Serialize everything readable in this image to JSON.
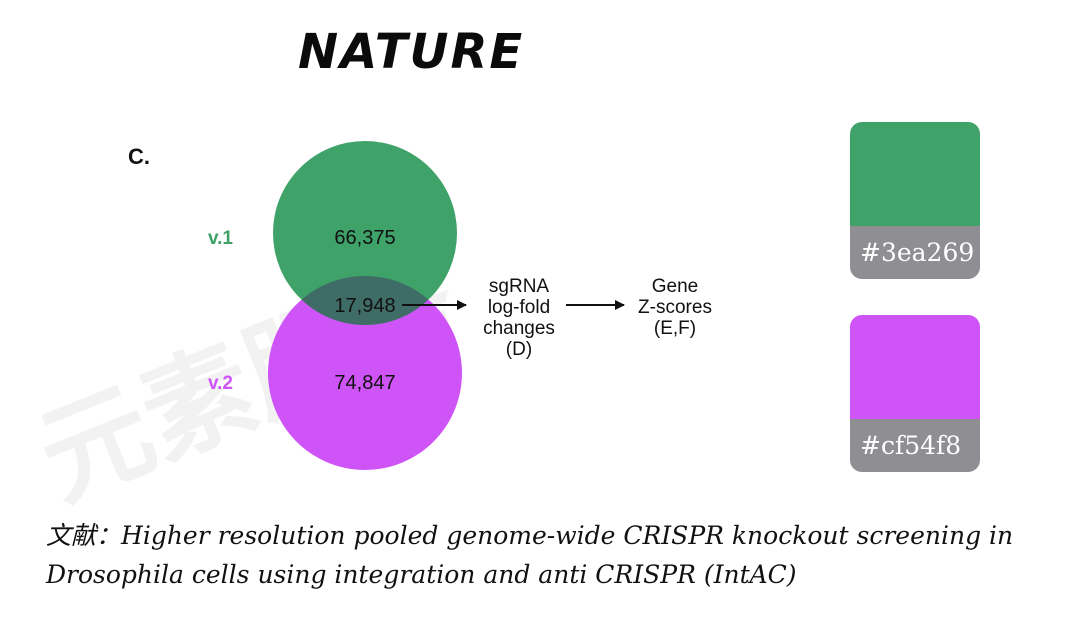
{
  "brand": "NATURE",
  "figure": {
    "panel_label": "C.",
    "venn": {
      "v1": {
        "label": "v.1",
        "count": "66,375",
        "color": "#3ea269"
      },
      "v2": {
        "label": "v.2",
        "count": "74,847",
        "color": "#cf54f8"
      },
      "overlap": {
        "count": "17,948",
        "color": "#3f6c67"
      }
    },
    "flow": {
      "step1": [
        "sgRNA",
        "log-fold",
        "changes",
        "(D)"
      ],
      "step2": [
        "Gene",
        "Z-scores",
        "(E,F)"
      ]
    }
  },
  "swatches": [
    {
      "hex": "#3ea269",
      "color": "#3ea269"
    },
    {
      "hex": "#cf54f8",
      "color": "#cf54f8"
    }
  ],
  "citation": {
    "prefix": "文献：",
    "text": "Higher resolution pooled genome-wide CRISPR knockout screening in Drosophila cells using integration and anti CRISPR (IntAC)"
  },
  "watermark": "元素服务"
}
